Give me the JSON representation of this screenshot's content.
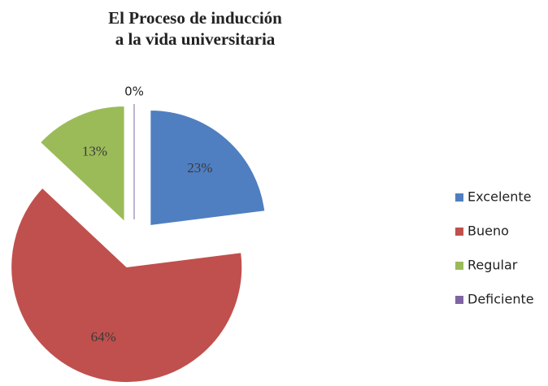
{
  "chart_data": {
    "type": "pie",
    "title": [
      "El Proceso de inducción",
      "a la vida universitaria"
    ],
    "categories": [
      "Excelente",
      "Bueno",
      "Regular",
      "Deficiente"
    ],
    "values": [
      23,
      64,
      13,
      0
    ],
    "value_labels": [
      "23%",
      "64%",
      "13%",
      "0%"
    ],
    "colors": [
      "#4f7fc0",
      "#c0504d",
      "#9bbb59",
      "#8064a2"
    ],
    "legend": "right"
  }
}
